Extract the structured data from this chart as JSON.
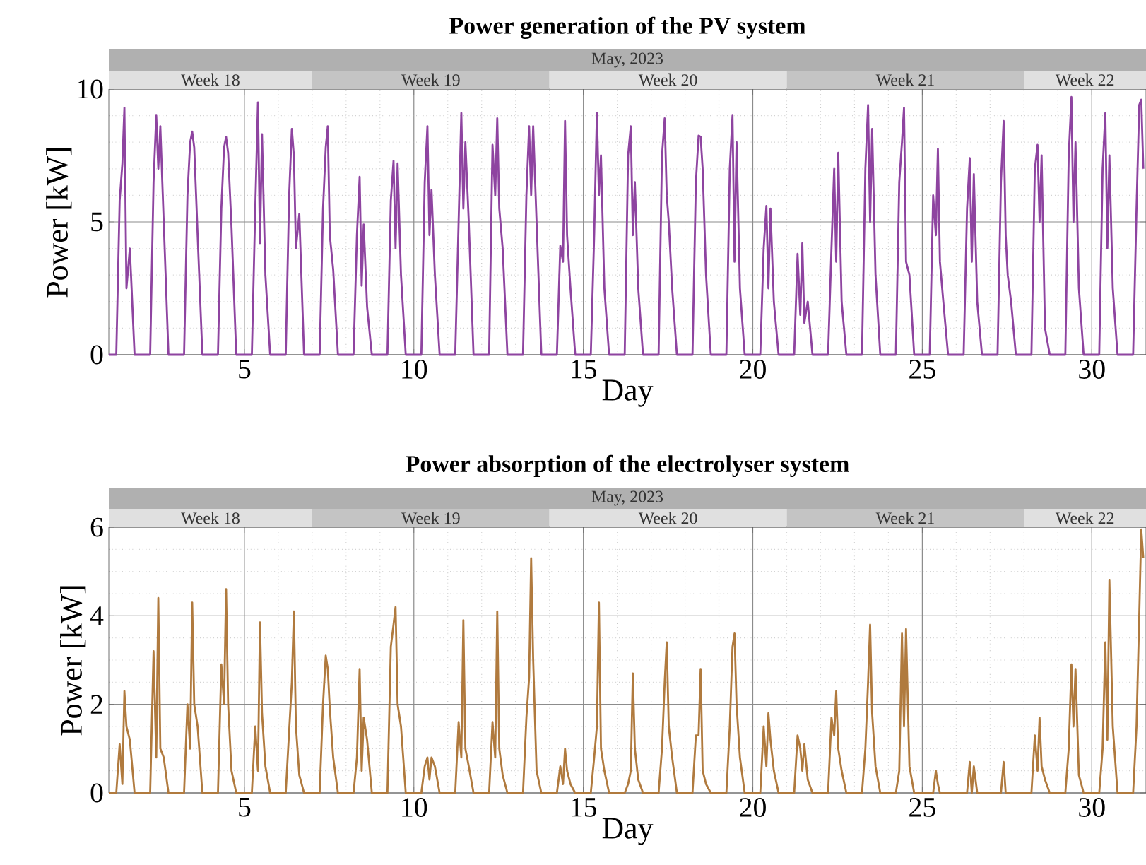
{
  "chart_data": [
    {
      "type": "line",
      "title": "Power generation of the PV system",
      "xlabel": "Day",
      "ylabel": "Power [kW]",
      "x": [
        1.0,
        1.22,
        1.32,
        1.4,
        1.46,
        1.52,
        1.62,
        1.76,
        2.22,
        2.32,
        2.4,
        2.46,
        2.52,
        2.62,
        2.76,
        3.22,
        3.32,
        3.4,
        3.46,
        3.52,
        3.62,
        3.76,
        4.22,
        4.32,
        4.4,
        4.46,
        4.52,
        4.62,
        4.76,
        5.22,
        5.32,
        5.4,
        5.46,
        5.52,
        5.62,
        5.76,
        6.22,
        6.32,
        6.4,
        6.46,
        6.52,
        6.62,
        6.76,
        7.22,
        7.32,
        7.4,
        7.46,
        7.52,
        7.62,
        7.76,
        8.22,
        8.32,
        8.4,
        8.46,
        8.52,
        8.62,
        8.76,
        9.22,
        9.32,
        9.4,
        9.46,
        9.52,
        9.62,
        9.76,
        10.22,
        10.32,
        10.4,
        10.46,
        10.52,
        10.62,
        10.76,
        11.22,
        11.32,
        11.4,
        11.46,
        11.52,
        11.62,
        11.76,
        12.22,
        12.32,
        12.4,
        12.46,
        12.52,
        12.62,
        12.76,
        13.22,
        13.32,
        13.4,
        13.46,
        13.52,
        13.62,
        13.76,
        14.22,
        14.32,
        14.4,
        14.46,
        14.52,
        14.62,
        14.76,
        15.22,
        15.32,
        15.4,
        15.46,
        15.52,
        15.62,
        15.76,
        16.22,
        16.32,
        16.4,
        16.46,
        16.52,
        16.62,
        16.76,
        17.22,
        17.32,
        17.4,
        17.46,
        17.52,
        17.62,
        17.76,
        18.22,
        18.32,
        18.4,
        18.46,
        18.52,
        18.62,
        18.76,
        19.22,
        19.32,
        19.4,
        19.46,
        19.52,
        19.62,
        19.76,
        20.22,
        20.32,
        20.4,
        20.46,
        20.52,
        20.62,
        20.76,
        21.22,
        21.32,
        21.4,
        21.46,
        21.52,
        21.62,
        21.76,
        22.22,
        22.32,
        22.4,
        22.46,
        22.52,
        22.62,
        22.76,
        23.22,
        23.32,
        23.4,
        23.46,
        23.52,
        23.62,
        23.76,
        24.22,
        24.32,
        24.4,
        24.46,
        24.52,
        24.62,
        24.76,
        25.22,
        25.32,
        25.4,
        25.46,
        25.52,
        25.62,
        25.76,
        26.22,
        26.32,
        26.4,
        26.46,
        26.52,
        26.62,
        26.76,
        27.22,
        27.32,
        27.4,
        27.46,
        27.52,
        27.62,
        27.76,
        28.22,
        28.32,
        28.4,
        28.46,
        28.52,
        28.62,
        28.76,
        29.22,
        29.32,
        29.4,
        29.46,
        29.52,
        29.62,
        29.76,
        30.22,
        30.32,
        30.4,
        30.46,
        30.52,
        30.62,
        30.76,
        31.22,
        31.32,
        31.4,
        31.46,
        31.52
      ],
      "series": [
        {
          "color": "#8e44a0",
          "values": [
            0,
            0,
            5.8,
            7.2,
            9.3,
            2.5,
            4.0,
            0,
            0,
            6.5,
            9.0,
            7.0,
            8.6,
            5.0,
            0,
            0,
            6.0,
            8.0,
            8.4,
            7.8,
            4.5,
            0,
            0,
            5.5,
            7.8,
            8.2,
            7.6,
            4.8,
            0,
            0,
            5.5,
            9.5,
            4.2,
            8.3,
            3.0,
            0,
            0,
            6.0,
            8.5,
            7.5,
            4.0,
            5.3,
            0,
            0,
            5.5,
            7.8,
            8.6,
            4.5,
            3.2,
            0,
            0,
            4.5,
            6.7,
            2.6,
            4.9,
            1.8,
            0,
            0,
            5.8,
            7.3,
            4.0,
            7.2,
            3.0,
            0,
            0,
            6.5,
            8.6,
            4.5,
            6.2,
            3.0,
            0,
            0,
            5.0,
            9.1,
            5.5,
            8.0,
            5.0,
            0,
            0,
            7.9,
            6.0,
            8.9,
            5.5,
            4.0,
            0,
            0,
            6.0,
            8.6,
            6.0,
            8.6,
            5.0,
            0,
            0,
            4.1,
            3.5,
            8.8,
            4.5,
            2.5,
            0,
            0,
            4.5,
            9.1,
            6.0,
            7.5,
            2.5,
            0,
            0,
            7.5,
            8.6,
            4.5,
            6.5,
            2.5,
            0,
            0,
            7.5,
            8.9,
            6.0,
            5.0,
            2.5,
            0,
            0,
            6.5,
            8.25,
            8.2,
            7.0,
            3.0,
            0,
            0,
            7.0,
            9.0,
            3.5,
            8.0,
            2.5,
            0,
            0,
            4.0,
            5.6,
            2.5,
            5.5,
            2.0,
            0,
            0,
            3.8,
            1.5,
            4.2,
            1.2,
            2.0,
            0,
            0,
            4.0,
            7.0,
            3.5,
            7.6,
            2.0,
            0,
            0,
            7.0,
            9.4,
            5.0,
            8.5,
            3.0,
            0,
            0,
            6.5,
            8.0,
            9.3,
            3.5,
            3.0,
            0,
            0,
            6.0,
            4.5,
            7.75,
            3.5,
            2.0,
            0,
            0,
            5.5,
            7.4,
            3.5,
            6.8,
            2.0,
            0,
            0,
            6.5,
            8.8,
            4.5,
            3.0,
            2.0,
            0,
            0,
            7.0,
            7.9,
            5.0,
            7.5,
            1.0,
            0,
            0,
            7.5,
            9.7,
            5.0,
            8.0,
            2.5,
            0,
            0,
            7.0,
            9.1,
            4.0,
            7.5,
            2.5,
            0,
            0,
            5.5,
            9.4,
            9.6,
            7.0
          ]
        }
      ],
      "xlim": [
        1,
        31.6
      ],
      "xticks": [
        5,
        10,
        15,
        20,
        25,
        30
      ],
      "ylim": [
        0,
        10
      ],
      "yticks": [
        0,
        5,
        10
      ],
      "grid": true,
      "annotations": [
        "May, 2023",
        "Week 18",
        "Week 19",
        "Week 20",
        "Week 21",
        "Week 22"
      ]
    },
    {
      "type": "line",
      "title": "Power absorption of the electrolyser system",
      "xlabel": "Day",
      "ylabel": "Power [kW]",
      "x": [
        1.0,
        1.22,
        1.32,
        1.4,
        1.46,
        1.52,
        1.62,
        1.76,
        2.22,
        2.32,
        2.4,
        2.46,
        2.52,
        2.62,
        2.76,
        3.22,
        3.32,
        3.4,
        3.46,
        3.52,
        3.62,
        3.76,
        4.22,
        4.32,
        4.4,
        4.46,
        4.52,
        4.62,
        4.76,
        5.22,
        5.32,
        5.4,
        5.46,
        5.52,
        5.62,
        5.76,
        6.22,
        6.32,
        6.4,
        6.46,
        6.52,
        6.62,
        6.76,
        7.22,
        7.32,
        7.4,
        7.46,
        7.52,
        7.62,
        7.76,
        8.22,
        8.32,
        8.4,
        8.46,
        8.52,
        8.62,
        8.76,
        9.22,
        9.32,
        9.4,
        9.46,
        9.52,
        9.62,
        9.76,
        10.22,
        10.32,
        10.4,
        10.46,
        10.52,
        10.62,
        10.76,
        11.22,
        11.32,
        11.4,
        11.46,
        11.52,
        11.62,
        11.76,
        12.22,
        12.32,
        12.4,
        12.46,
        12.52,
        12.62,
        12.76,
        13.22,
        13.32,
        13.4,
        13.46,
        13.52,
        13.62,
        13.76,
        14.22,
        14.32,
        14.4,
        14.46,
        14.52,
        14.62,
        14.76,
        15.22,
        15.32,
        15.4,
        15.46,
        15.52,
        15.62,
        15.76,
        16.22,
        16.32,
        16.4,
        16.46,
        16.52,
        16.62,
        16.76,
        17.22,
        17.32,
        17.4,
        17.46,
        17.52,
        17.62,
        17.76,
        18.22,
        18.32,
        18.4,
        18.46,
        18.52,
        18.62,
        18.76,
        19.22,
        19.32,
        19.4,
        19.46,
        19.52,
        19.62,
        19.76,
        20.22,
        20.32,
        20.4,
        20.46,
        20.52,
        20.62,
        20.76,
        21.22,
        21.32,
        21.4,
        21.46,
        21.52,
        21.62,
        21.76,
        22.22,
        22.32,
        22.4,
        22.46,
        22.52,
        22.62,
        22.76,
        23.22,
        23.32,
        23.4,
        23.46,
        23.52,
        23.62,
        23.76,
        24.22,
        24.32,
        24.4,
        24.46,
        24.52,
        24.62,
        24.76,
        25.22,
        25.32,
        25.4,
        25.46,
        25.52,
        25.62,
        25.76,
        26.22,
        26.32,
        26.4,
        26.46,
        26.52,
        26.62,
        26.76,
        27.22,
        27.32,
        27.4,
        27.46,
        27.52,
        27.62,
        27.76,
        28.22,
        28.32,
        28.4,
        28.46,
        28.52,
        28.62,
        28.76,
        29.22,
        29.32,
        29.4,
        29.46,
        29.52,
        29.62,
        29.76,
        30.22,
        30.32,
        30.4,
        30.46,
        30.52,
        30.62,
        30.76,
        31.22,
        31.32,
        31.4,
        31.46,
        31.52
      ],
      "series": [
        {
          "color": "#b07a3e",
          "values": [
            0,
            0,
            1.1,
            0.2,
            2.3,
            1.5,
            1.2,
            0,
            0,
            3.2,
            0.8,
            4.4,
            1.0,
            0.8,
            0,
            0,
            2.0,
            1.0,
            4.3,
            2.0,
            1.5,
            0,
            0,
            2.9,
            2.0,
            4.6,
            2.0,
            0.5,
            0,
            0,
            1.5,
            0.5,
            3.85,
            1.8,
            0.6,
            0,
            0,
            1.4,
            2.5,
            4.1,
            1.5,
            0.4,
            0,
            0,
            2.0,
            3.1,
            2.8,
            1.9,
            0.8,
            0,
            0,
            0.8,
            2.8,
            0.5,
            1.7,
            1.2,
            0,
            0,
            3.3,
            3.8,
            4.2,
            2.0,
            1.5,
            0,
            0,
            0.6,
            0.8,
            0.3,
            0.8,
            0.6,
            0,
            0,
            1.6,
            0.8,
            3.9,
            1.0,
            0.6,
            0,
            0,
            1.6,
            0.8,
            4.1,
            1.0,
            0.4,
            0,
            0,
            1.7,
            2.6,
            5.3,
            3.0,
            0.5,
            0,
            0,
            0.6,
            0.2,
            1.0,
            0.5,
            0.2,
            0,
            0,
            0.8,
            1.5,
            4.3,
            1.0,
            0.5,
            0,
            0,
            0.2,
            0.5,
            2.7,
            1.0,
            0.3,
            0,
            0,
            1.0,
            2.5,
            3.4,
            1.5,
            0.8,
            0,
            0,
            1.3,
            1.3,
            2.8,
            0.5,
            0.2,
            0,
            0,
            1.5,
            3.3,
            3.6,
            2.0,
            0.8,
            0,
            0,
            1.5,
            0.6,
            1.8,
            1.2,
            0.5,
            0,
            0,
            1.3,
            1.0,
            0.5,
            1.1,
            0.3,
            0,
            0,
            1.7,
            1.3,
            2.3,
            1.0,
            0.5,
            0,
            0,
            1.0,
            2.5,
            3.8,
            1.8,
            0.6,
            0,
            0,
            0.5,
            3.6,
            1.5,
            3.7,
            0.6,
            0,
            0,
            0,
            0.5,
            0.2,
            0,
            0,
            0,
            0,
            0,
            0.7,
            0,
            0.6,
            0,
            0,
            0,
            0,
            0.7,
            0,
            0,
            0,
            0,
            0,
            1.3,
            0.5,
            1.7,
            0.6,
            0.3,
            0,
            0,
            1.0,
            2.9,
            1.5,
            2.8,
            0.4,
            0,
            0,
            1.0,
            3.4,
            1.2,
            4.8,
            1.5,
            0,
            0,
            1.5,
            4.0,
            5.95,
            5.3
          ]
        }
      ],
      "xlim": [
        1,
        31.6
      ],
      "xticks": [
        5,
        10,
        15,
        20,
        25,
        30
      ],
      "ylim": [
        0,
        6
      ],
      "yticks": [
        0,
        2,
        4,
        6
      ],
      "grid": true,
      "annotations": [
        "May, 2023",
        "Week 18",
        "Week 19",
        "Week 20",
        "Week 21",
        "Week 22"
      ]
    }
  ]
}
